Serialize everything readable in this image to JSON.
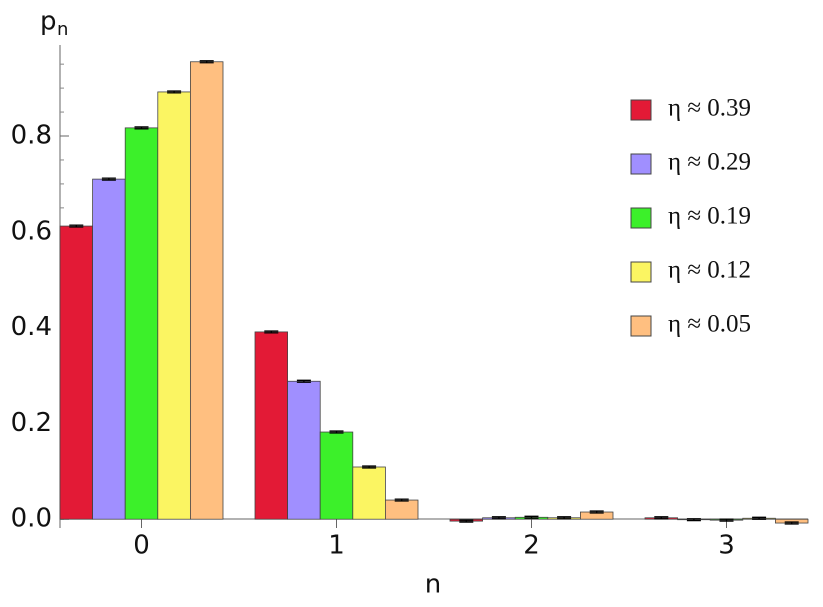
{
  "chart_data": {
    "type": "bar",
    "y_label": "p",
    "y_label_subscript": "n",
    "x_label": "n",
    "categories": [
      "0",
      "1",
      "2",
      "3"
    ],
    "series": [
      {
        "name": "η ≈ 0.39",
        "color": "#e31a36",
        "values": [
          0.612,
          0.391,
          -0.004,
          0.003
        ],
        "errors": [
          0.002,
          0.002,
          0.002,
          0.002
        ]
      },
      {
        "name": "η ≈ 0.29",
        "color": "#a08fff",
        "values": [
          0.71,
          0.288,
          0.003,
          -0.001
        ],
        "errors": [
          0.002,
          0.002,
          0.002,
          0.002
        ]
      },
      {
        "name": "η ≈ 0.19",
        "color": "#3cf02a",
        "values": [
          0.817,
          0.182,
          0.004,
          -0.002
        ],
        "errors": [
          0.002,
          0.002,
          0.002,
          0.002
        ]
      },
      {
        "name": "η ≈ 0.12",
        "color": "#fbf562",
        "values": [
          0.892,
          0.109,
          0.003,
          0.002
        ],
        "errors": [
          0.002,
          0.002,
          0.002,
          0.002
        ]
      },
      {
        "name": "η ≈ 0.05",
        "color": "#ffbf80",
        "values": [
          0.955,
          0.04,
          0.015,
          -0.008
        ],
        "errors": [
          0.002,
          0.002,
          0.002,
          0.002
        ]
      }
    ],
    "ylim": [
      -0.01,
      0.99
    ],
    "yticks": [
      {
        "value": 0,
        "label": "0.0"
      },
      0.2,
      0.4,
      0.6,
      0.8
    ],
    "legend": "top-right"
  }
}
